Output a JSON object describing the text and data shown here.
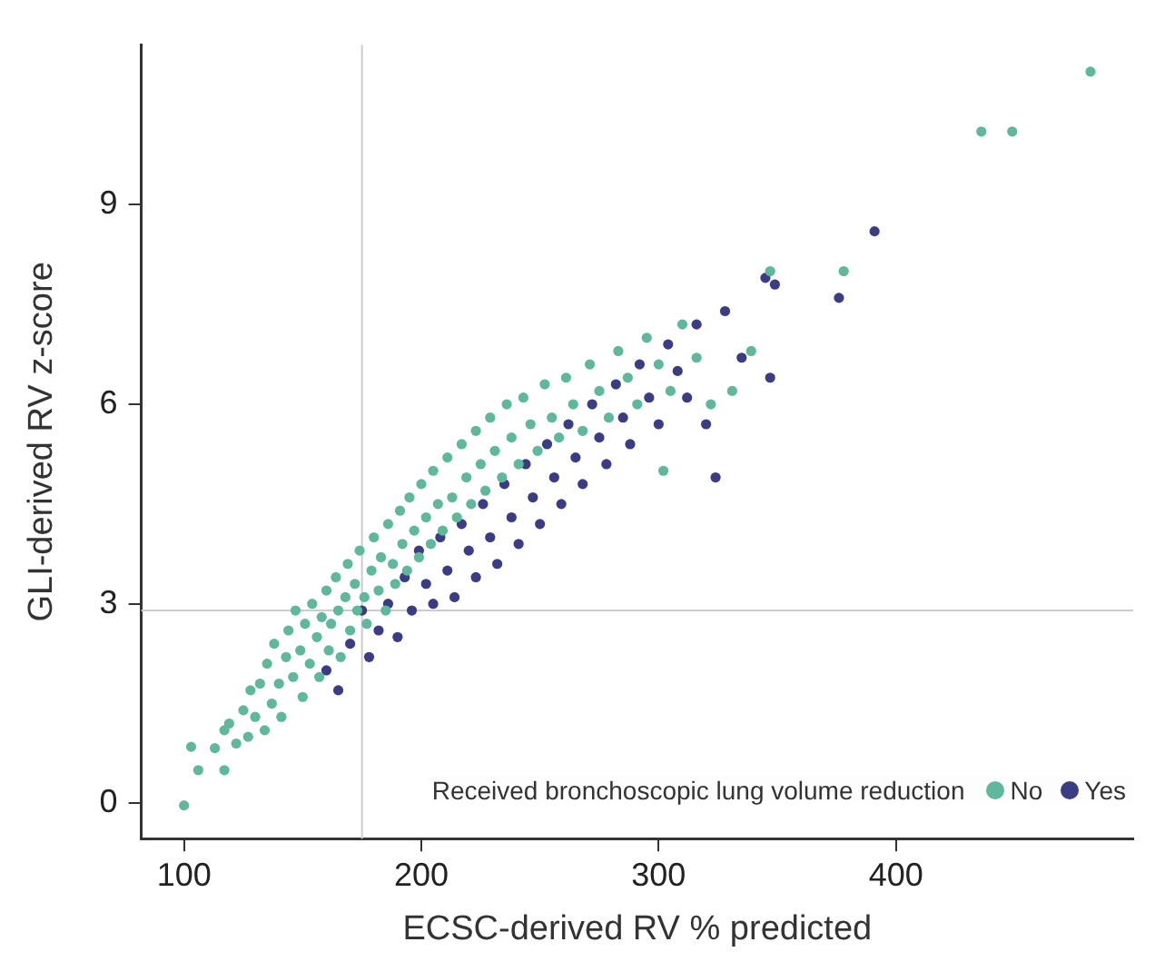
{
  "chart_data": {
    "type": "scatter",
    "xlabel": "ECSC-derived RV % predicted",
    "ylabel": "GLI-derived RV z-score",
    "legend_title": "Received bronchoscopic lung volume reduction",
    "legend": "bottom right",
    "marker": "circle",
    "grid": false,
    "xlim": [
      82,
      500
    ],
    "xticks": [
      100,
      200,
      300,
      400
    ],
    "ylim": [
      -0.53,
      11.4
    ],
    "yticks": [
      0,
      3,
      6,
      9
    ],
    "ref_lines": [
      {
        "axis": "x",
        "value": 175,
        "color": "#cccccc"
      },
      {
        "axis": "y",
        "value": 2.9,
        "color": "#cccccc"
      }
    ],
    "series": [
      {
        "name": "No",
        "color": "#5fb89b",
        "x": [
          100,
          103,
          106,
          113,
          117,
          117,
          119,
          122,
          125,
          127,
          128,
          130,
          132,
          134,
          135,
          137,
          138,
          140,
          141,
          143,
          144,
          146,
          147,
          149,
          150,
          151,
          153,
          154,
          156,
          157,
          158,
          160,
          161,
          162,
          164,
          165,
          166,
          168,
          169,
          170,
          172,
          173,
          174,
          176,
          177,
          179,
          180,
          182,
          183,
          185,
          186,
          188,
          189,
          191,
          192,
          194,
          195,
          197,
          199,
          200,
          202,
          204,
          205,
          207,
          209,
          211,
          213,
          215,
          217,
          219,
          221,
          223,
          225,
          227,
          229,
          231,
          234,
          236,
          238,
          241,
          243,
          246,
          249,
          252,
          255,
          258,
          261,
          264,
          268,
          271,
          275,
          279,
          283,
          287,
          291,
          295,
          300,
          302,
          305,
          310,
          316,
          322,
          331,
          339,
          347,
          378,
          436,
          449,
          482
        ],
        "values": [
          -0.03,
          0.85,
          0.5,
          0.83,
          0.5,
          1.1,
          1.2,
          0.9,
          1.4,
          1.0,
          1.7,
          1.3,
          1.8,
          1.1,
          2.1,
          1.5,
          2.4,
          1.8,
          1.3,
          2.2,
          2.6,
          1.9,
          2.9,
          2.3,
          1.6,
          2.7,
          2.1,
          3.0,
          2.5,
          1.9,
          2.8,
          3.2,
          2.3,
          2.7,
          3.4,
          2.9,
          2.2,
          3.1,
          3.6,
          2.6,
          3.3,
          2.9,
          3.8,
          3.1,
          2.7,
          3.5,
          4.0,
          3.2,
          3.7,
          2.9,
          4.2,
          3.6,
          3.3,
          4.4,
          3.9,
          3.5,
          4.6,
          4.1,
          3.7,
          4.8,
          4.3,
          3.9,
          5.0,
          4.5,
          4.1,
          5.2,
          4.6,
          4.3,
          5.4,
          4.9,
          4.5,
          5.6,
          5.1,
          4.7,
          5.8,
          5.3,
          4.9,
          6.0,
          5.5,
          5.1,
          6.1,
          5.7,
          5.3,
          6.3,
          5.8,
          5.5,
          6.4,
          6.0,
          5.6,
          6.6,
          6.2,
          5.8,
          6.8,
          6.4,
          6.0,
          7.0,
          6.6,
          5.0,
          6.2,
          7.2,
          6.7,
          6.0,
          6.2,
          6.8,
          8.0,
          8.0,
          10.1,
          10.1,
          11.0
        ]
      },
      {
        "name": "Yes",
        "color": "#3a3d83",
        "x": [
          160,
          165,
          170,
          175,
          178,
          182,
          186,
          190,
          193,
          196,
          199,
          202,
          205,
          208,
          211,
          214,
          217,
          220,
          223,
          226,
          229,
          232,
          235,
          238,
          241,
          244,
          247,
          250,
          253,
          256,
          259,
          262,
          265,
          268,
          272,
          275,
          278,
          282,
          285,
          288,
          292,
          296,
          300,
          304,
          308,
          312,
          316,
          320,
          324,
          328,
          335,
          345,
          347,
          349,
          376,
          391
        ],
        "values": [
          2.0,
          1.7,
          2.4,
          2.9,
          2.2,
          2.6,
          3.0,
          2.5,
          3.4,
          2.9,
          3.8,
          3.3,
          3.0,
          4.0,
          3.5,
          3.1,
          4.2,
          3.8,
          3.4,
          4.5,
          4.0,
          3.6,
          4.8,
          4.3,
          3.9,
          5.1,
          4.6,
          4.2,
          5.4,
          4.9,
          4.5,
          5.7,
          5.2,
          4.8,
          6.0,
          5.5,
          5.1,
          6.3,
          5.8,
          5.4,
          6.6,
          6.1,
          5.7,
          6.9,
          6.5,
          6.1,
          7.2,
          5.7,
          4.9,
          7.4,
          6.7,
          7.9,
          6.4,
          7.8,
          7.6,
          8.6
        ]
      }
    ]
  }
}
